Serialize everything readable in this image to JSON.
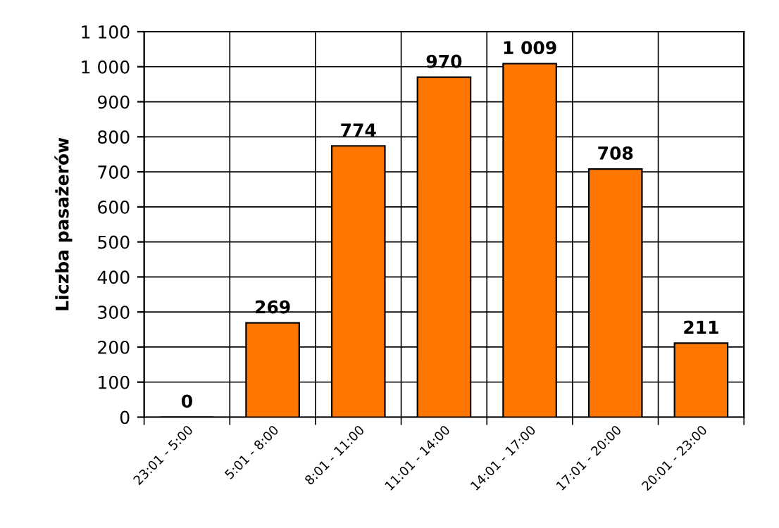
{
  "chart_data": {
    "type": "bar",
    "ylabel": "Liczba pasażerów",
    "categories": [
      "23:01 - 5:00",
      "5:01 - 8:00",
      "8:01 - 11:00",
      "11:01 - 14:00",
      "14:01 - 17:00",
      "17:01 - 20:00",
      "20:01 - 23:00"
    ],
    "values": [
      0,
      269,
      774,
      970,
      1009,
      708,
      211
    ],
    "value_labels": [
      "0",
      "269",
      "774",
      "970",
      "1 009",
      "708",
      "211"
    ],
    "color": "#ff7700",
    "ylim": [
      0,
      1100
    ],
    "yticks": [
      0,
      100,
      200,
      300,
      400,
      500,
      600,
      700,
      800,
      900,
      {
        "value": 1000,
        "label": "1 000"
      },
      {
        "value": 1100,
        "label": "1 100"
      }
    ],
    "grid": true,
    "legend": false
  }
}
